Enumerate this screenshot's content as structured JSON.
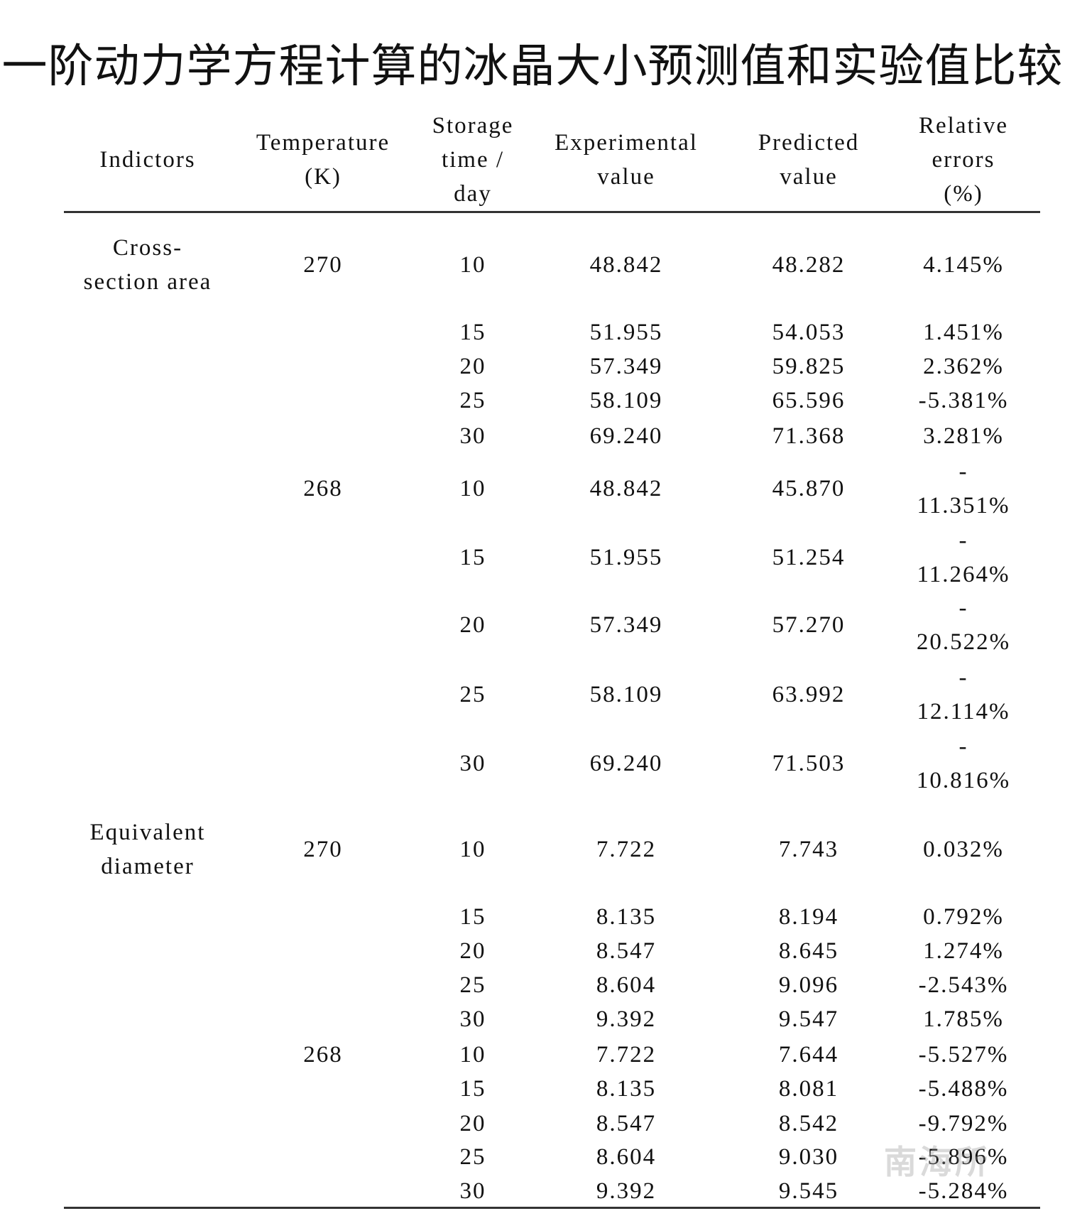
{
  "title": "一阶动力学方程计算的冰晶大小预测值和实验值比较",
  "headers": {
    "indicators": [
      "Indictors"
    ],
    "temperature": [
      "Temperature",
      "(K)"
    ],
    "storage": [
      "Storage",
      "time /",
      "day"
    ],
    "experimental": [
      "Experimental",
      "value"
    ],
    "predicted": [
      "Predicted",
      "value"
    ],
    "relative": [
      "Relative",
      "errors",
      "(%)"
    ]
  },
  "groups": [
    {
      "indicator": [
        "Cross-",
        "section area"
      ]
    },
    {
      "indicator": [
        "Equivalent",
        "diameter"
      ]
    }
  ],
  "rows": [
    {
      "temp": "270",
      "day": "10",
      "exp": "48.842",
      "pred": "48.282",
      "err": "4.145%"
    },
    {
      "temp": "",
      "day": "15",
      "exp": "51.955",
      "pred": "54.053",
      "err": "1.451%"
    },
    {
      "temp": "",
      "day": "20",
      "exp": "57.349",
      "pred": "59.825",
      "err": "2.362%"
    },
    {
      "temp": "",
      "day": "25",
      "exp": "58.109",
      "pred": "65.596",
      "err": "-5.381%"
    },
    {
      "temp": "",
      "day": "30",
      "exp": "69.240",
      "pred": "71.368",
      "err": "3.281%"
    },
    {
      "temp": "268",
      "day": "10",
      "exp": "48.842",
      "pred": "45.870",
      "err": "-11.351%"
    },
    {
      "temp": "",
      "day": "15",
      "exp": "51.955",
      "pred": "51.254",
      "err": "-11.264%"
    },
    {
      "temp": "",
      "day": "20",
      "exp": "57.349",
      "pred": "57.270",
      "err": "-20.522%"
    },
    {
      "temp": "",
      "day": "25",
      "exp": "58.109",
      "pred": "63.992",
      "err": "-12.114%"
    },
    {
      "temp": "",
      "day": "30",
      "exp": "69.240",
      "pred": "71.503",
      "err": "-10.816%"
    },
    {
      "temp": "270",
      "day": "10",
      "exp": "7.722",
      "pred": "7.743",
      "err": "0.032%"
    },
    {
      "temp": "",
      "day": "15",
      "exp": "8.135",
      "pred": "8.194",
      "err": "0.792%"
    },
    {
      "temp": "",
      "day": "20",
      "exp": "8.547",
      "pred": "8.645",
      "err": "1.274%"
    },
    {
      "temp": "",
      "day": "25",
      "exp": "8.604",
      "pred": "9.096",
      "err": "-2.543%"
    },
    {
      "temp": "",
      "day": "30",
      "exp": "9.392",
      "pred": "9.547",
      "err": "1.785%"
    },
    {
      "temp": "268",
      "day": "10",
      "exp": "7.722",
      "pred": "7.644",
      "err": "-5.527%"
    },
    {
      "temp": "",
      "day": "15",
      "exp": "8.135",
      "pred": "8.081",
      "err": "-5.488%"
    },
    {
      "temp": "",
      "day": "20",
      "exp": "8.547",
      "pred": "8.542",
      "err": "-9.792%"
    },
    {
      "temp": "",
      "day": "25",
      "exp": "8.604",
      "pred": "9.030",
      "err": "-5.896%"
    },
    {
      "temp": "",
      "day": "30",
      "exp": "9.392",
      "pred": "9.545",
      "err": "-5.284%"
    }
  ],
  "watermark": "南海所"
}
